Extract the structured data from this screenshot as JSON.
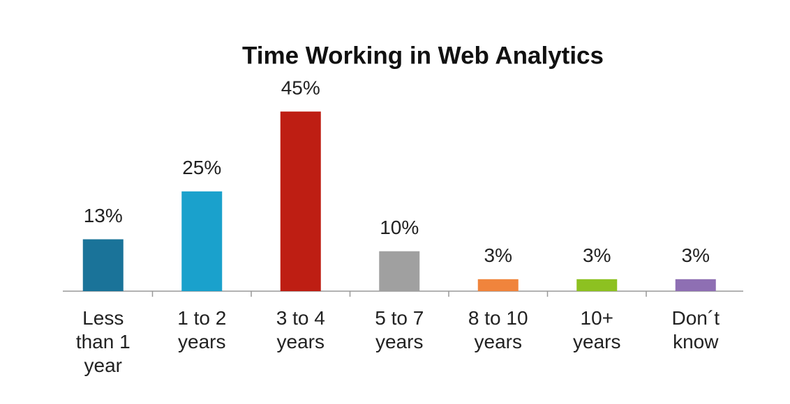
{
  "chart_data": {
    "type": "bar",
    "title": "Time Working in Web Analytics",
    "categories": [
      "Less than 1 year",
      "1 to 2 years",
      "3 to 4 years",
      "5 to 7 years",
      "8 to 10 years",
      "10+ years",
      "Don´t know"
    ],
    "values": [
      13,
      25,
      45,
      10,
      3,
      3,
      3
    ],
    "value_labels": [
      "13%",
      "25%",
      "45%",
      "10%",
      "3%",
      "3%",
      "3%"
    ],
    "colors": [
      "#1a7399",
      "#1aa1cc",
      "#be1e13",
      "#a0a0a0",
      "#f0843c",
      "#8dc121",
      "#8e6fb3"
    ]
  }
}
